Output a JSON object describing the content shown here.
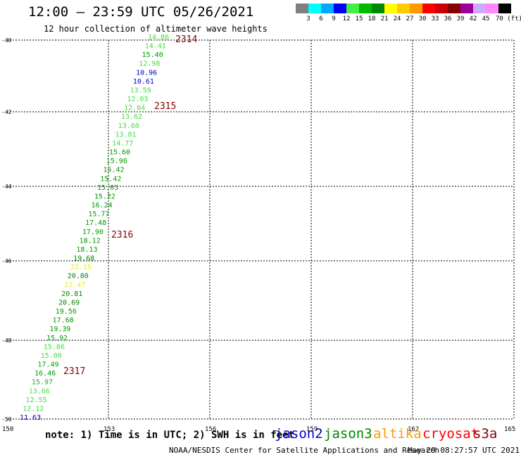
{
  "header": {
    "title": "12:00 – 23:59 UTC 05/26/2021",
    "subtitle": "12 hour collection of altimeter wave heights"
  },
  "legend": {
    "colors": [
      "#7f7f7f",
      "#00ffff",
      "#00aaff",
      "#0000ff",
      "#44ee44",
      "#00bb00",
      "#008800",
      "#ffff00",
      "#ffcc00",
      "#ff9900",
      "#ff0000",
      "#cc0000",
      "#880000",
      "#990099",
      "#ccaaff",
      "#ff88ff",
      "#000000"
    ],
    "labels": [
      "3",
      "6",
      "9",
      "12",
      "15",
      "18",
      "21",
      "24",
      "27",
      "30",
      "33",
      "36",
      "39",
      "42",
      "45",
      "70 (ft)"
    ]
  },
  "chart_data": {
    "type": "scatter",
    "title": "12:00 – 23:59 UTC 05/26/2021",
    "subtitle": "12 hour collection of altimeter wave heights",
    "xlim": [
      150,
      165
    ],
    "ylim": [
      -50,
      -40
    ],
    "xticks": [
      "150",
      "153",
      "156",
      "159",
      "162",
      "165"
    ],
    "yticks": [
      "-40",
      "-42",
      "-44",
      "-46",
      "-48",
      "-50"
    ],
    "grid": true,
    "points": [
      {
        "lon": 153.4,
        "lat": -50.0,
        "swh": "11.63",
        "color": "#0000cc"
      },
      {
        "lon": 153.6,
        "lat": -49.8,
        "swh": "12.12",
        "color": "#44dd44"
      },
      {
        "lon": 153.7,
        "lat": -49.5,
        "swh": "12.55",
        "color": "#44dd44"
      },
      {
        "lon": 153.8,
        "lat": -49.2,
        "swh": "13.66",
        "color": "#44dd44"
      },
      {
        "lon": 153.9,
        "lat": -49.0,
        "swh": "15.97",
        "color": "#22aa22"
      },
      {
        "lon": 154.0,
        "lat": -48.8,
        "swh": "16.46",
        "color": "#009900"
      },
      {
        "lon": 154.1,
        "lat": -48.5,
        "swh": "17.49",
        "color": "#009900"
      },
      {
        "lon": 154.2,
        "lat": -48.3,
        "swh": "15.00",
        "color": "#44dd44"
      },
      {
        "lon": 154.3,
        "lat": -48.0,
        "swh": "15.86",
        "color": "#44dd44"
      },
      {
        "lon": 154.4,
        "lat": -47.8,
        "swh": "15.92",
        "color": "#009900"
      },
      {
        "lon": 154.5,
        "lat": -47.5,
        "swh": "19.39",
        "color": "#009900"
      },
      {
        "lon": 154.6,
        "lat": -47.3,
        "swh": "17.68",
        "color": "#009900"
      },
      {
        "lon": 154.7,
        "lat": -47.0,
        "swh": "19.56",
        "color": "#009900"
      },
      {
        "lon": 154.8,
        "lat": -46.8,
        "swh": "20.69",
        "color": "#008800"
      },
      {
        "lon": 154.9,
        "lat": -46.5,
        "swh": "20.81",
        "color": "#008800"
      },
      {
        "lon": 155.0,
        "lat": -46.3,
        "swh": "22.47",
        "color": "#eeee00"
      },
      {
        "lon": 155.1,
        "lat": -46.0,
        "swh": "20.80",
        "color": "#008800"
      },
      {
        "lon": 155.2,
        "lat": -45.8,
        "swh": "22.15",
        "color": "#eeee00"
      },
      {
        "lon": 155.3,
        "lat": -45.5,
        "swh": "19.68",
        "color": "#008800"
      },
      {
        "lon": 155.4,
        "lat": -45.3,
        "swh": "18.13",
        "color": "#009900"
      },
      {
        "lon": 155.5,
        "lat": -45.0,
        "swh": "18.12",
        "color": "#009900"
      },
      {
        "lon": 155.6,
        "lat": -44.8,
        "swh": "17.90",
        "color": "#009900"
      },
      {
        "lon": 155.7,
        "lat": -44.5,
        "swh": "17.48",
        "color": "#009900"
      },
      {
        "lon": 155.8,
        "lat": -44.3,
        "swh": "15.77",
        "color": "#009900"
      },
      {
        "lon": 155.9,
        "lat": -44.0,
        "swh": "16.24",
        "color": "#009900"
      },
      {
        "lon": 156.0,
        "lat": -43.8,
        "swh": "15.22",
        "color": "#009900"
      },
      {
        "lon": 156.1,
        "lat": -43.5,
        "swh": "15.03",
        "color": "#009900"
      },
      {
        "lon": 156.2,
        "lat": -43.3,
        "swh": "15.42",
        "color": "#009900"
      },
      {
        "lon": 156.3,
        "lat": -43.0,
        "swh": "15.42",
        "color": "#009900"
      },
      {
        "lon": 156.4,
        "lat": -42.8,
        "swh": "15.96",
        "color": "#009900"
      },
      {
        "lon": 156.5,
        "lat": -42.5,
        "swh": "15.60",
        "color": "#009900"
      },
      {
        "lon": 156.6,
        "lat": -42.3,
        "swh": "14.77",
        "color": "#44dd44"
      },
      {
        "lon": 156.7,
        "lat": -42.0,
        "swh": "13.01",
        "color": "#44dd44"
      },
      {
        "lon": 156.8,
        "lat": -41.8,
        "swh": "13.60",
        "color": "#44dd44"
      },
      {
        "lon": 156.9,
        "lat": -41.5,
        "swh": "13.62",
        "color": "#44dd44"
      },
      {
        "lon": 157.0,
        "lat": -41.3,
        "swh": "12.04",
        "color": "#44dd44"
      },
      {
        "lon": 157.1,
        "lat": -41.0,
        "swh": "12.03",
        "color": "#44dd44"
      },
      {
        "lon": 157.2,
        "lat": -40.8,
        "swh": "13.59",
        "color": "#44dd44"
      },
      {
        "lon": 157.3,
        "lat": -40.5,
        "swh": "10.61",
        "color": "#0000cc"
      },
      {
        "lon": 157.4,
        "lat": -40.3,
        "swh": "10.96",
        "color": "#0000cc"
      },
      {
        "lon": 157.5,
        "lat": -40.0,
        "swh": "12.98",
        "color": "#44dd44"
      },
      {
        "lon": 157.6,
        "lat": -39.8,
        "swh": "15.40",
        "color": "#009900"
      },
      {
        "lon": 157.7,
        "lat": -39.5,
        "swh": "14.41",
        "color": "#44dd44"
      },
      {
        "lon": 157.8,
        "lat": -39.3,
        "swh": "14.86",
        "color": "#44dd44"
      }
    ],
    "annotations": [
      {
        "text": "2314",
        "lon": 159.0,
        "lat": -40.0,
        "color": "#880000"
      },
      {
        "text": "2315",
        "lon": 159.0,
        "lat": -41.8,
        "color": "#880000"
      },
      {
        "text": "2316",
        "lon": 155.4,
        "lat": -45.4,
        "color": "#880000"
      },
      {
        "text": "2317",
        "lon": 154.9,
        "lat": -48.9,
        "color": "#880000"
      }
    ]
  },
  "footer": {
    "note": "note: 1) Time is in UTC; 2) SWH is in feet",
    "satellites": [
      {
        "name": "jason2",
        "color": "#0000cc"
      },
      {
        "name": "jason3",
        "color": "#008800"
      },
      {
        "name": "altika",
        "color": "#ff9900"
      },
      {
        "name": "cryosat",
        "color": "#ff0000"
      },
      {
        "name": "s3a",
        "color": "#880000"
      }
    ],
    "credit": "NOAA/NESDIS Center for Satellite Applications and Research",
    "timestamp": "May 29 08:27:57 UTC 2021"
  }
}
